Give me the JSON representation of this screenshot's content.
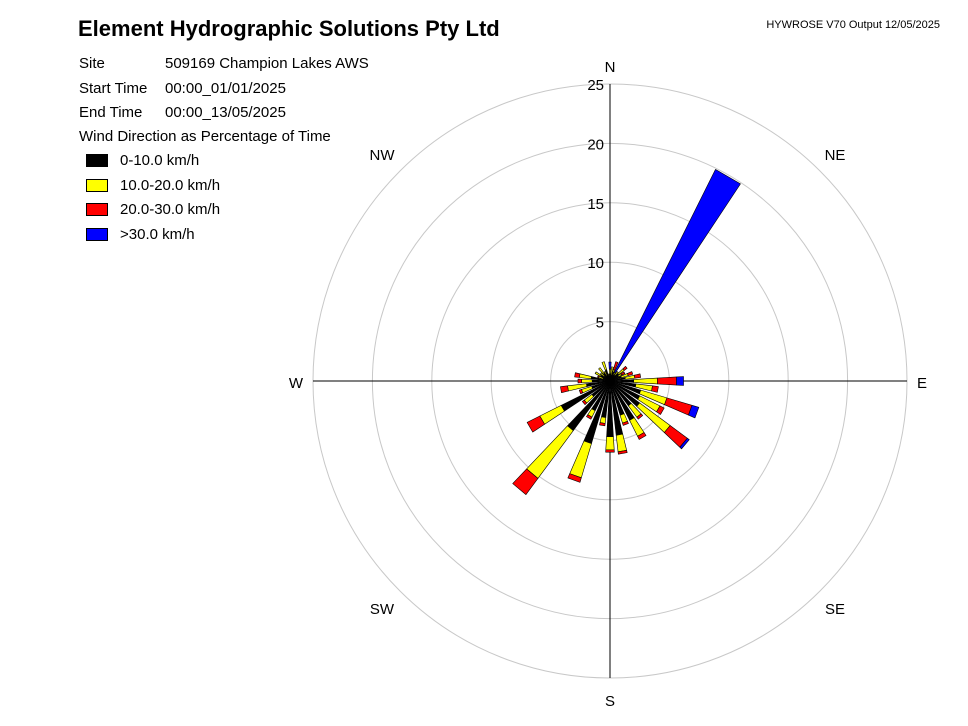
{
  "header": {
    "company": "Element Hydrographic Solutions Pty Ltd",
    "output_info": "HYWROSE V70  Output 12/05/2025"
  },
  "meta": [
    {
      "label": "Site",
      "value": "509169  Champion Lakes AWS"
    },
    {
      "label": "Start Time",
      "value": "00:00_01/01/2025"
    },
    {
      "label": "End Time",
      "value": "00:00_13/05/2025"
    }
  ],
  "legend_title": "Wind Direction as Percentage of Time",
  "chart_data": {
    "type": "wind-rose",
    "radial_unit": "percent of time",
    "radial_max": 25,
    "rings": [
      5,
      10,
      15,
      20,
      25
    ],
    "ring_labels": [
      "5",
      "10",
      "15",
      "20",
      "25"
    ],
    "compass_labels": {
      "N": "N",
      "NE": "NE",
      "E": "E",
      "SE": "SE",
      "S": "S",
      "SW": "SW",
      "W": "W",
      "NW": "NW"
    },
    "speed_classes": [
      {
        "label": "0-10.0 km/h",
        "color": "#000000"
      },
      {
        "label": "10.0-20.0 km/h",
        "color": "#ffff00"
      },
      {
        "label": "20.0-30.0 km/h",
        "color": "#ff0000"
      },
      {
        "label": ">30.0 km/h",
        "color": "#0000ff"
      }
    ],
    "sector_width_deg": 7,
    "sectors": [
      {
        "direction": 0,
        "values": [
          0.6,
          0.4,
          0.0,
          0.6
        ]
      },
      {
        "direction": 10,
        "values": [
          0.5,
          0.7,
          0.0,
          0.0
        ]
      },
      {
        "direction": 20,
        "values": [
          0.8,
          0.2,
          0.7,
          0.0
        ]
      },
      {
        "direction": 30,
        "values": [
          0.6,
          0.2,
          0.0,
          19.1
        ]
      },
      {
        "direction": 40,
        "values": [
          0.6,
          0.4,
          0.0,
          0.0
        ]
      },
      {
        "direction": 50,
        "values": [
          0.9,
          0.6,
          0.3,
          0.0
        ]
      },
      {
        "direction": 60,
        "values": [
          0.8,
          0.3,
          0.3,
          0.0
        ]
      },
      {
        "direction": 70,
        "values": [
          1.0,
          0.6,
          0.4,
          0.0
        ]
      },
      {
        "direction": 80,
        "values": [
          1.3,
          0.8,
          0.5,
          0.0
        ]
      },
      {
        "direction": 90,
        "values": [
          2.0,
          2.0,
          1.6,
          0.6
        ]
      },
      {
        "direction": 100,
        "values": [
          2.2,
          1.4,
          0.5,
          0.0
        ]
      },
      {
        "direction": 110,
        "values": [
          2.7,
          2.3,
          2.2,
          0.6
        ]
      },
      {
        "direction": 120,
        "values": [
          2.8,
          1.9,
          0.4,
          0.0
        ]
      },
      {
        "direction": 130,
        "values": [
          3.1,
          3.2,
          1.8,
          0.2
        ]
      },
      {
        "direction": 140,
        "values": [
          2.6,
          1.2,
          0.2,
          0.0
        ]
      },
      {
        "direction": 150,
        "values": [
          3.7,
          1.5,
          0.3,
          0.0
        ]
      },
      {
        "direction": 160,
        "values": [
          3.0,
          0.7,
          0.2,
          0.0
        ]
      },
      {
        "direction": 170,
        "values": [
          4.6,
          1.4,
          0.2,
          0.0
        ]
      },
      {
        "direction": 180,
        "values": [
          4.7,
          1.1,
          0.2,
          0.0
        ]
      },
      {
        "direction": 190,
        "values": [
          3.1,
          0.5,
          0.2,
          0.0
        ]
      },
      {
        "direction": 200,
        "values": [
          5.5,
          3.0,
          0.4,
          0.0
        ]
      },
      {
        "direction": 210,
        "values": [
          2.8,
          0.6,
          0.2,
          0.0
        ]
      },
      {
        "direction": 220,
        "values": [
          5.2,
          5.0,
          1.7,
          0.0
        ]
      },
      {
        "direction": 230,
        "values": [
          1.9,
          0.8,
          0.2,
          0.0
        ]
      },
      {
        "direction": 240,
        "values": [
          4.6,
          2.0,
          1.2,
          0.0
        ]
      },
      {
        "direction": 250,
        "values": [
          1.6,
          0.9,
          0.2,
          0.0
        ]
      },
      {
        "direction": 260,
        "values": [
          2.0,
          1.6,
          0.6,
          0.0
        ]
      },
      {
        "direction": 270,
        "values": [
          1.5,
          0.9,
          0.3,
          0.0
        ]
      },
      {
        "direction": 280,
        "values": [
          1.6,
          1.0,
          0.4,
          0.0
        ]
      },
      {
        "direction": 290,
        "values": [
          0.6,
          0.4,
          0.1,
          0.0
        ]
      },
      {
        "direction": 300,
        "values": [
          0.9,
          0.5,
          0.0,
          0.0
        ]
      },
      {
        "direction": 310,
        "values": [
          0.6,
          0.4,
          0.0,
          0.0
        ]
      },
      {
        "direction": 320,
        "values": [
          0.8,
          0.6,
          0.0,
          0.0
        ]
      },
      {
        "direction": 330,
        "values": [
          0.5,
          0.4,
          0.0,
          0.0
        ]
      },
      {
        "direction": 340,
        "values": [
          1.0,
          0.7,
          0.0,
          0.0
        ]
      },
      {
        "direction": 350,
        "values": [
          0.4,
          0.2,
          0.0,
          0.0
        ]
      }
    ]
  }
}
